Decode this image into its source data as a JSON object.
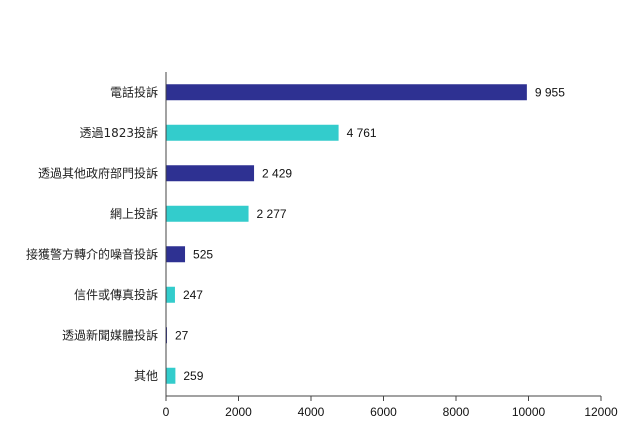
{
  "chart_data": {
    "type": "bar",
    "orientation": "horizontal",
    "categories": [
      "電話投訴",
      "透過1823投訴",
      "透過其他政府部門投訴",
      "網上投訴",
      "接獲警方轉介的噪音投訴",
      "信件或傳真投訴",
      "透過新聞媒體投訴",
      "其他"
    ],
    "values": [
      9955,
      4761,
      2429,
      2277,
      525,
      247,
      27,
      259
    ],
    "value_labels": [
      "9 955",
      "4 761",
      "2 429",
      "2 277",
      "525",
      "247",
      "27",
      "259"
    ],
    "xlim": [
      0,
      12000
    ],
    "x_ticks": [
      0,
      2000,
      4000,
      6000,
      8000,
      10000,
      12000
    ],
    "x_tick_labels": [
      "0",
      "2000",
      "4000",
      "6000",
      "8000",
      "10000",
      "12000"
    ],
    "bar_colors": [
      "#2e3192",
      "#33cccc",
      "#2e3192",
      "#33cccc",
      "#2e3192",
      "#33cccc",
      "#2e3192",
      "#33cccc"
    ],
    "grid": false,
    "legend": "none"
  }
}
